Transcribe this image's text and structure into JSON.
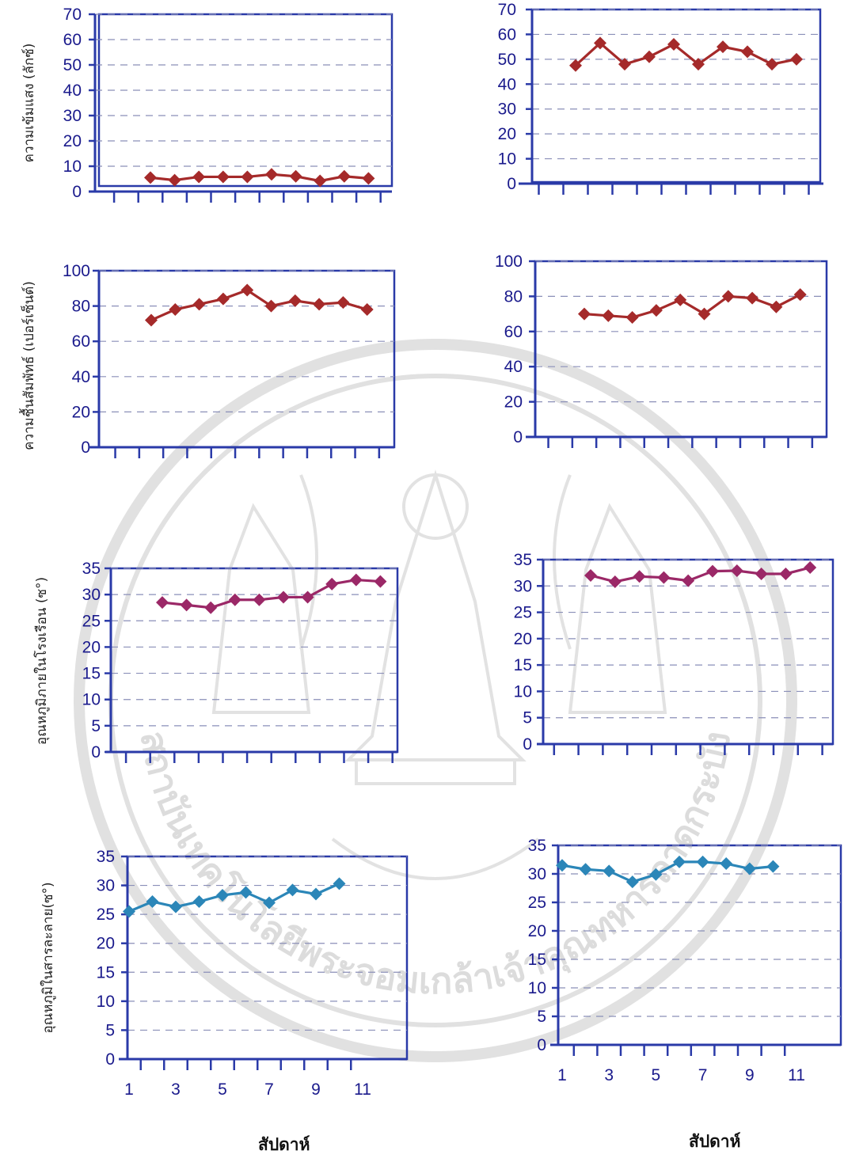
{
  "x_axis_title": "สัปดาห์",
  "y_axis_titles": {
    "light": "ความเข้มแสง (ลักซ์)",
    "humidity": "ความชื้นสัมพัทธ์ (เปอร์เซ็นต์)",
    "greenhouse_temp": "อุณหภูมิภายในโรงเรือน (ซ°)",
    "solution_temp": "อุณหภูมิในสารละลาย(ซ°)"
  },
  "watermark_text": "สถาบันเทคโนโลยีพระจอมเกล้าเจ้าคุณทหารลาดกระบัง",
  "colors": {
    "axis": "#2a3aa8",
    "grid": "#8a8fb8",
    "red_series": "#a52a2a",
    "purple_series": "#9b2867",
    "blue_series": "#2b86b8"
  },
  "chart_data": [
    {
      "id": "light-left",
      "type": "line",
      "x": [
        1,
        2,
        3,
        4,
        5,
        6,
        7,
        8,
        9,
        10,
        11,
        12
      ],
      "ylim": [
        0,
        70
      ],
      "yticks": [
        0,
        10,
        20,
        30,
        40,
        50,
        60,
        70
      ],
      "xtick_labels": [],
      "color": "red_series",
      "values": [
        null,
        null,
        5.5,
        4.5,
        5.8,
        5.8,
        5.8,
        6.8,
        6,
        4.2,
        6,
        5.2
      ]
    },
    {
      "id": "light-right",
      "type": "line",
      "x": [
        1,
        2,
        3,
        4,
        5,
        6,
        7,
        8,
        9,
        10,
        11,
        12
      ],
      "ylim": [
        0,
        70
      ],
      "yticks": [
        0,
        10,
        20,
        30,
        40,
        50,
        60,
        70
      ],
      "xtick_labels": [],
      "color": "red_series",
      "values": [
        null,
        null,
        47.5,
        56.5,
        48,
        51,
        56,
        48,
        55,
        53,
        48,
        50
      ]
    },
    {
      "id": "humidity-left",
      "type": "line",
      "x": [
        1,
        2,
        3,
        4,
        5,
        6,
        7,
        8,
        9,
        10,
        11,
        12
      ],
      "ylim": [
        0,
        100
      ],
      "yticks": [
        0,
        20,
        40,
        60,
        80,
        100
      ],
      "xtick_labels": [],
      "color": "red_series",
      "values": [
        null,
        null,
        72,
        78,
        81,
        84,
        89,
        80,
        83,
        81,
        82,
        78
      ]
    },
    {
      "id": "humidity-right",
      "type": "line",
      "x": [
        1,
        2,
        3,
        4,
        5,
        6,
        7,
        8,
        9,
        10,
        11,
        12
      ],
      "ylim": [
        0,
        100
      ],
      "yticks": [
        0,
        20,
        40,
        60,
        80,
        100
      ],
      "xtick_labels": [],
      "color": "red_series",
      "values": [
        null,
        null,
        70,
        69,
        68,
        72,
        78,
        70,
        80,
        79,
        74,
        81
      ]
    },
    {
      "id": "gh-temp-left",
      "type": "line",
      "x": [
        1,
        2,
        3,
        4,
        5,
        6,
        7,
        8,
        9,
        10,
        11,
        12
      ],
      "ylim": [
        0,
        35
      ],
      "yticks": [
        0,
        5,
        10,
        15,
        20,
        25,
        30,
        35
      ],
      "xtick_labels": [],
      "color": "purple_series",
      "values": [
        null,
        null,
        28.5,
        28,
        27.5,
        29,
        29,
        29.5,
        29.5,
        32,
        32.8,
        32.5
      ]
    },
    {
      "id": "gh-temp-right",
      "type": "line",
      "x": [
        1,
        2,
        3,
        4,
        5,
        6,
        7,
        8,
        9,
        10,
        11,
        12
      ],
      "ylim": [
        0,
        35
      ],
      "yticks": [
        0,
        5,
        10,
        15,
        20,
        25,
        30,
        35
      ],
      "xtick_labels": [],
      "color": "purple_series",
      "values": [
        null,
        null,
        32,
        30.8,
        31.8,
        31.6,
        31,
        32.8,
        32.9,
        32.3,
        32.3,
        33.5
      ]
    },
    {
      "id": "sol-temp-left",
      "type": "line",
      "x": [
        1,
        2,
        3,
        4,
        5,
        6,
        7,
        8,
        9,
        10,
        11,
        12
      ],
      "ylim": [
        0,
        35
      ],
      "yticks": [
        0,
        5,
        10,
        15,
        20,
        25,
        30,
        35
      ],
      "xtick_labels": [
        "1",
        "3",
        "5",
        "7",
        "9",
        "11"
      ],
      "color": "blue_series",
      "values": [
        null,
        null,
        25.5,
        27.2,
        26.3,
        27.2,
        28.3,
        28.8,
        27,
        29.2,
        28.5,
        30.3
      ]
    },
    {
      "id": "sol-temp-right",
      "type": "line",
      "x": [
        1,
        2,
        3,
        4,
        5,
        6,
        7,
        8,
        9,
        10,
        11,
        12
      ],
      "ylim": [
        0,
        35
      ],
      "yticks": [
        0,
        5,
        10,
        15,
        20,
        25,
        30,
        35
      ],
      "xtick_labels": [
        "1",
        "3",
        "5",
        "7",
        "9",
        "11"
      ],
      "color": "blue_series",
      "values": [
        null,
        null,
        31.5,
        30.8,
        30.5,
        28.6,
        29.9,
        32.1,
        32.1,
        31.8,
        30.9,
        31.3
      ]
    }
  ]
}
